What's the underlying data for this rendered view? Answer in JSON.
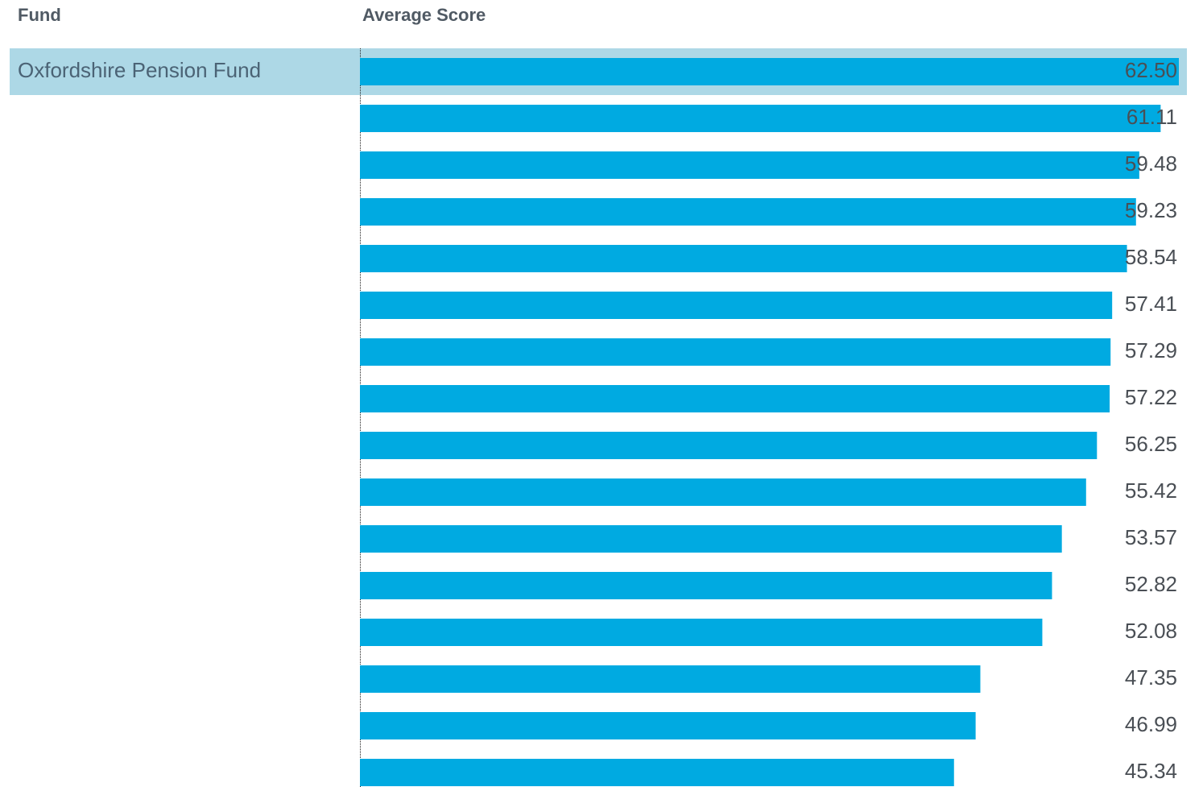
{
  "chart_data": {
    "type": "bar",
    "orientation": "horizontal",
    "headers": [
      "Fund",
      "Average Score"
    ],
    "categories": [
      "Oxfordshire Pension Fund",
      null,
      null,
      null,
      null,
      null,
      null,
      null,
      null,
      null,
      null,
      null,
      null,
      null,
      null,
      null
    ],
    "values": [
      62.5,
      61.11,
      59.48,
      59.23,
      58.54,
      57.41,
      57.29,
      57.22,
      56.25,
      55.42,
      53.57,
      52.82,
      52.08,
      47.35,
      46.99,
      45.34
    ],
    "value_labels": [
      "62.50",
      "61.11",
      "59.48",
      "59.23",
      "58.54",
      "57.41",
      "57.29",
      "57.22",
      "56.25",
      "55.42",
      "53.57",
      "52.82",
      "52.08",
      "47.35",
      "46.99",
      "45.34"
    ],
    "color": "#00aae1",
    "highlight_color": "#add8e6"
  }
}
